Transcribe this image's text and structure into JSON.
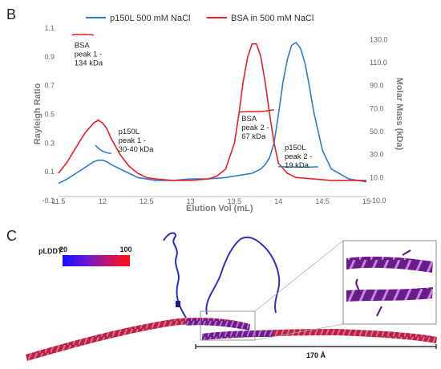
{
  "panels": {
    "b_label": "B",
    "c_label": "C"
  },
  "chart_data": {
    "type": "line",
    "title": "",
    "xlabel": "Elution Vol (mL)",
    "ylabel": "Rayleigh Ratio",
    "y2label": "Molar Mass (kDa)",
    "xlim": [
      11.5,
      15
    ],
    "ylim": [
      -0.1,
      1.1
    ],
    "y2lim": [
      -10,
      140
    ],
    "x_ticks": [
      11.5,
      12,
      12.5,
      13,
      13.5,
      14,
      14.5,
      15
    ],
    "x_tick_labels": [
      "11.5",
      "12",
      "12.5",
      "13",
      "13.5",
      "14",
      "14.5",
      "15"
    ],
    "y_ticks": [
      -0.1,
      0.1,
      0.3,
      0.5,
      0.7,
      0.9,
      1.1
    ],
    "y_tick_labels": [
      "-0.1",
      "0.1",
      "0.3",
      "0.5",
      "0.7",
      "0.9",
      "1.1"
    ],
    "y2_ticks": [
      -10,
      10,
      30,
      50,
      70,
      90,
      110,
      130
    ],
    "y2_tick_labels": [
      "-10.0",
      "10.0",
      "30.0",
      "50.0",
      "70.0",
      "90.0",
      "110.0",
      "130.0"
    ],
    "grid": false,
    "legend_position": "top",
    "series": [
      {
        "name": "p150L 500 mM NaCl",
        "color": "#2e7bd1",
        "axis": "left",
        "x": [
          11.5,
          11.6,
          11.7,
          11.8,
          11.9,
          11.95,
          12.0,
          12.05,
          12.1,
          12.2,
          12.3,
          12.4,
          12.5,
          12.6,
          12.8,
          13.0,
          13.2,
          13.4,
          13.5,
          13.6,
          13.7,
          13.8,
          13.85,
          13.9,
          13.95,
          14.0,
          14.05,
          14.1,
          14.15,
          14.2,
          14.25,
          14.3,
          14.35,
          14.4,
          14.5,
          14.6,
          14.8,
          15.0
        ],
        "y": [
          0.02,
          0.05,
          0.09,
          0.13,
          0.17,
          0.18,
          0.18,
          0.17,
          0.15,
          0.12,
          0.09,
          0.06,
          0.05,
          0.04,
          0.04,
          0.05,
          0.05,
          0.06,
          0.07,
          0.08,
          0.09,
          0.12,
          0.15,
          0.2,
          0.3,
          0.5,
          0.72,
          0.88,
          0.98,
          1.0,
          0.96,
          0.86,
          0.7,
          0.52,
          0.25,
          0.12,
          0.05,
          0.03
        ]
      },
      {
        "name": "BSA in 500 mM NaCl",
        "color": "#e8202a",
        "axis": "left",
        "x": [
          11.5,
          11.6,
          11.7,
          11.8,
          11.9,
          11.95,
          12.0,
          12.05,
          12.1,
          12.2,
          12.3,
          12.4,
          12.5,
          12.6,
          12.8,
          13.0,
          13.2,
          13.3,
          13.4,
          13.5,
          13.55,
          13.6,
          13.65,
          13.7,
          13.75,
          13.8,
          13.85,
          13.9,
          13.95,
          14.0,
          14.1,
          14.2,
          14.4,
          14.6,
          14.8,
          15.0
        ],
        "y": [
          0.09,
          0.17,
          0.27,
          0.37,
          0.44,
          0.46,
          0.44,
          0.4,
          0.33,
          0.22,
          0.14,
          0.09,
          0.06,
          0.05,
          0.04,
          0.04,
          0.05,
          0.07,
          0.12,
          0.3,
          0.5,
          0.73,
          0.9,
          0.99,
          0.99,
          0.9,
          0.72,
          0.5,
          0.3,
          0.16,
          0.09,
          0.06,
          0.05,
          0.04,
          0.04,
          0.04
        ]
      }
    ],
    "molar_mass_segments": [
      {
        "label": "p150L",
        "color": "#2e7bd1",
        "x": [
          11.92,
          11.96,
          12.0,
          12.05,
          12.1
        ],
        "y2": [
          38,
          35,
          33,
          31.5,
          31
        ]
      },
      {
        "label": "BSA",
        "color": "#e8202a",
        "x": [
          11.65,
          11.7,
          11.75,
          11.8,
          11.85,
          11.9
        ],
        "y2": [
          134,
          134.5,
          134.3,
          134.4,
          134.2,
          134.0
        ]
      },
      {
        "label": "BSA",
        "color": "#e8202a",
        "x": [
          13.55,
          13.65,
          13.75,
          13.85,
          13.95
        ],
        "y2": [
          67,
          67.3,
          67.2,
          67.8,
          69
        ]
      },
      {
        "label": "p150L",
        "color": "#2e7bd1",
        "x": [
          14.0,
          14.15,
          14.3,
          14.45
        ],
        "y2": [
          19.5,
          19.2,
          19.0,
          19.3
        ]
      }
    ],
    "annotations": [
      {
        "lines": [
          "BSA",
          "peak 1 -",
          "134 kDa"
        ],
        "x": 11.68,
        "y2": 123
      },
      {
        "lines": [
          "p150L",
          "peak 1 -",
          "30-40 kDa"
        ],
        "x": 12.18,
        "y2": 48
      },
      {
        "lines": [
          "BSA",
          "peak 2 -",
          "67 kDa"
        ],
        "x": 13.58,
        "y2": 59
      },
      {
        "lines": [
          "p150L",
          "peak 2 -",
          "19 kDa"
        ],
        "x": 14.07,
        "y2": 34
      }
    ]
  },
  "structure_panel": {
    "colorbar_label": "pLDDT",
    "colorbar_min": "20",
    "colorbar_max": "100",
    "colorbar_colors": [
      "#1010ff",
      "#7a18c8",
      "#d01550",
      "#ff1010"
    ],
    "scale_label": "170 Å"
  }
}
